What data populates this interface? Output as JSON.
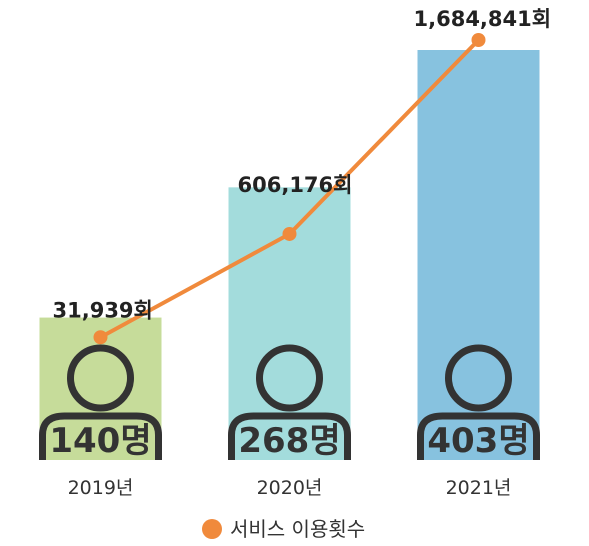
{
  "chart_data": {
    "type": "bar",
    "categories": [
      "2019년",
      "2020년",
      "2021년"
    ],
    "bar_series": {
      "name": "",
      "values": [
        140,
        268,
        403
      ],
      "value_labels": [
        "140명",
        "268명",
        "403명"
      ],
      "colors": [
        "#c6dc9a",
        "#a3dcdc",
        "#87c2df"
      ]
    },
    "line_series": {
      "name": "서비스 이용횟수",
      "values": [
        31939,
        606176,
        1684841
      ],
      "value_labels": [
        "31,939회",
        "606,176회",
        "1,684,841회"
      ],
      "color": "#f08a3c"
    },
    "legend": {
      "position": "bottom",
      "label": "서비스 이용횟수"
    },
    "grid": false,
    "title": "",
    "xlabel": "",
    "ylabel": ""
  }
}
